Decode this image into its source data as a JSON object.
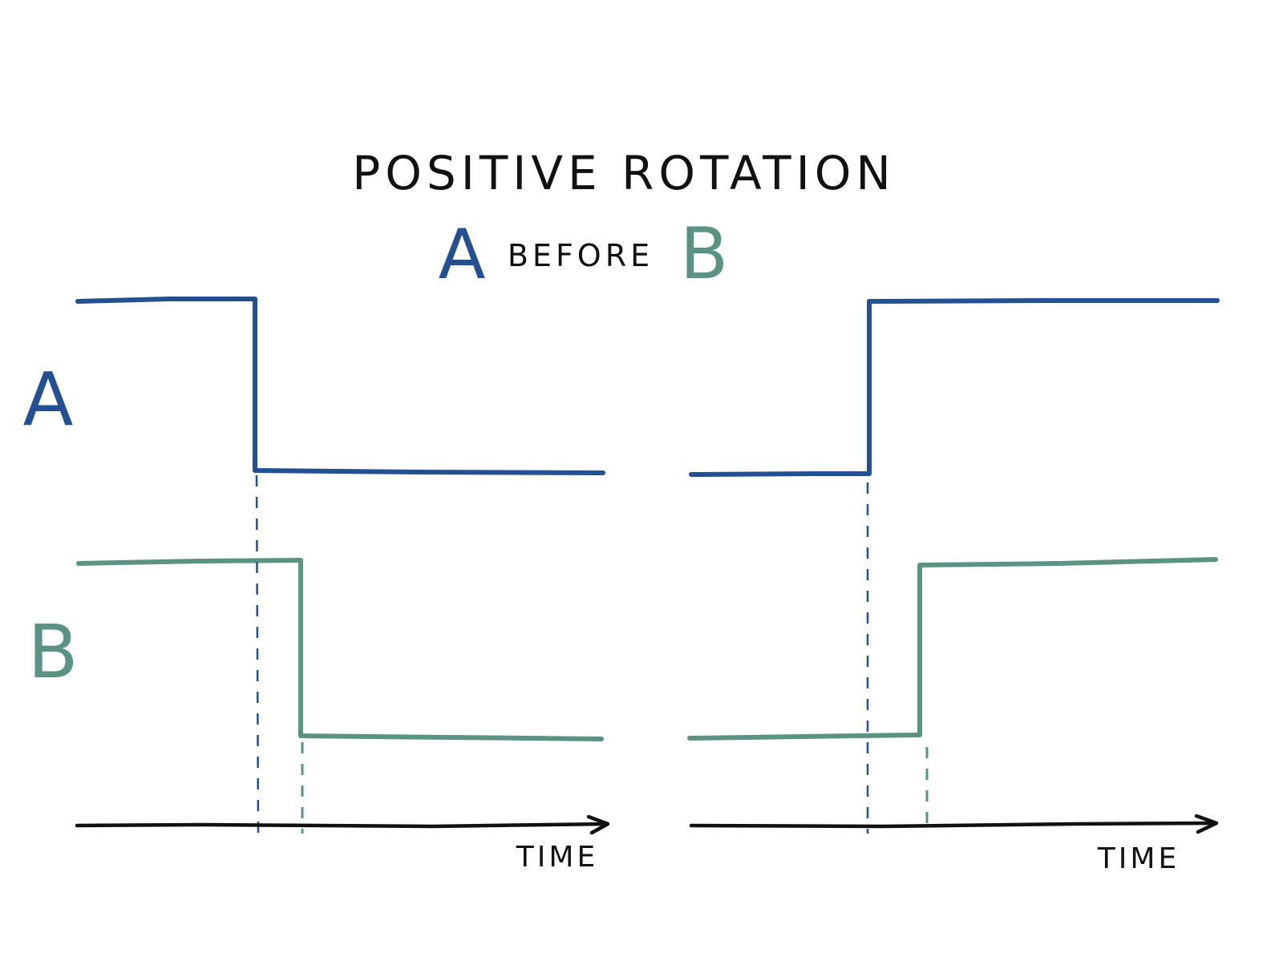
{
  "title": "Positive Rotation",
  "subtitle": {
    "first": "A",
    "middle": "before",
    "last": "B"
  },
  "labels": {
    "signal_a": "A",
    "signal_b": "B"
  },
  "colors": {
    "signal_a": "#234f93",
    "signal_b": "#5a9383",
    "ink": "#111111"
  },
  "panels": [
    {
      "name": "left",
      "x_label": "Time",
      "signal_a_transition": "high-to-low",
      "signal_b_transition": "high-to-low"
    },
    {
      "name": "right",
      "x_label": "Time",
      "signal_a_transition": "low-to-high",
      "signal_b_transition": "low-to-high"
    }
  ]
}
